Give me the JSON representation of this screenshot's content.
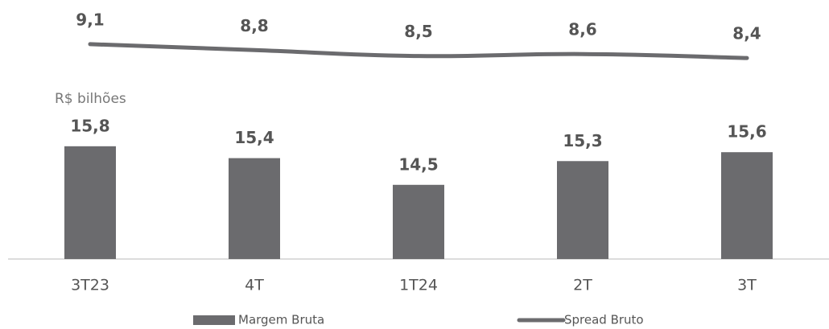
{
  "chart_data": {
    "type": "bar",
    "subtitle": "R$ bilhões",
    "categories": [
      "3T23",
      "4T",
      "1T24",
      "2T",
      "3T"
    ],
    "series": [
      {
        "name": "Margem Bruta",
        "type": "bar",
        "color": "#6b6b6e",
        "values": [
          15.8,
          15.4,
          14.5,
          15.3,
          15.6
        ],
        "value_labels": [
          "15,8",
          "15,4",
          "14,5",
          "15,3",
          "15,6"
        ]
      },
      {
        "name": "Spread Bruto",
        "type": "line",
        "axis": "y2",
        "color": "#6b6b6e",
        "values": [
          9.1,
          8.8,
          8.5,
          8.6,
          8.4
        ],
        "value_labels": [
          "9,1",
          "8,8",
          "8,5",
          "8,6",
          "8,4"
        ]
      }
    ],
    "ylim": [
      12,
      16.5
    ],
    "y2lim": [
      8,
      9.5
    ],
    "legend": "bottom"
  }
}
